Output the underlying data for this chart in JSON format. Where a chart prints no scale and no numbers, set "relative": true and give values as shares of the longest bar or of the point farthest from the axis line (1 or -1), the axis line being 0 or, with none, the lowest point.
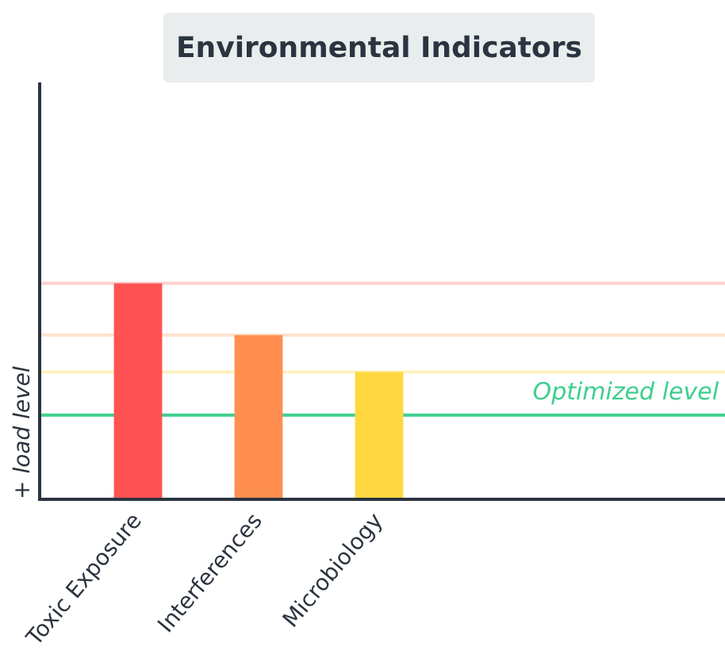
{
  "chart_data": {
    "type": "bar",
    "title": "Environmental Indicators",
    "ylabel": "+ load level",
    "relative": true,
    "categories": [
      "Toxic Exposure",
      "Interferences",
      "Microbiology"
    ],
    "values": [
      1,
      0.76,
      0.59
    ],
    "colors": [
      "#ff5252",
      "#ff8f50",
      "#ffd740"
    ],
    "ref_lines": [
      {
        "axis": "y",
        "value": 1,
        "color": "#ffd0d0"
      },
      {
        "axis": "y",
        "value": 0.76,
        "color": "#ffe2cc"
      },
      {
        "axis": "y",
        "value": 0.59,
        "color": "#fff2c2"
      },
      {
        "axis": "y",
        "value": 0.39,
        "label": "Optimized level",
        "color": "#3ecf8e"
      }
    ],
    "grid": false,
    "legend": false
  }
}
